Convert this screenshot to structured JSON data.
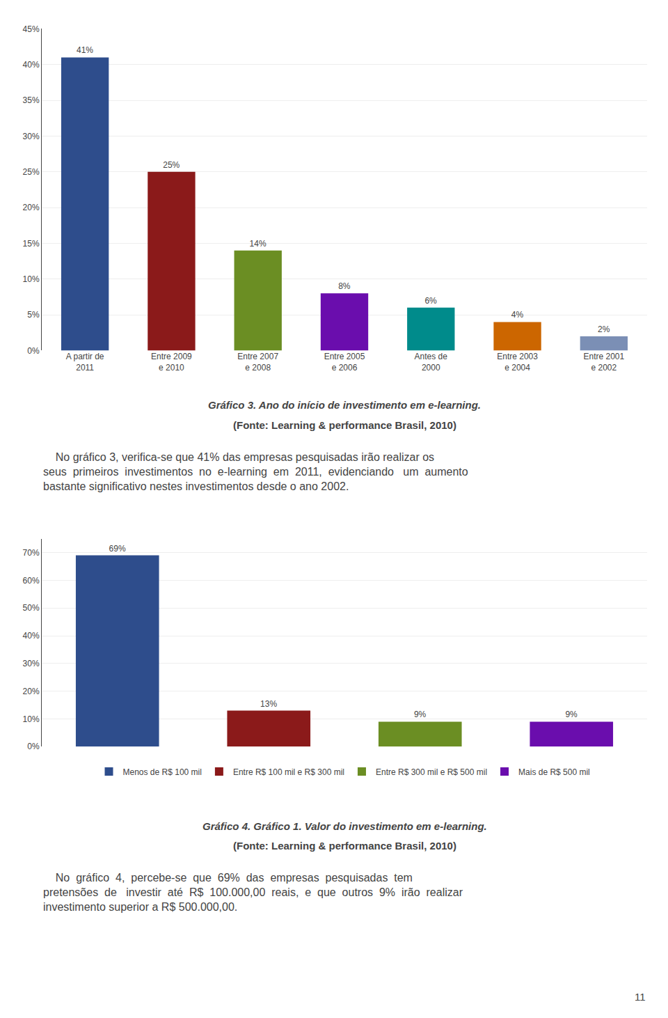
{
  "chart_data": [
    {
      "type": "bar",
      "title": "Gráfico 3. Ano do início de investimento em e-learning.",
      "subtitle": "(Fonte: Learning & performance Brasil, 2010)",
      "categories": [
        "A partir de\n2011",
        "Entre 2009\ne 2010",
        "Entre 2007\ne 2008",
        "Entre 2005\ne 2006",
        "Antes de\n2000",
        "Entre 2003\ne 2004",
        "Entre 2001\ne 2002"
      ],
      "values": [
        41,
        25,
        14,
        8,
        6,
        4,
        2
      ],
      "value_labels": [
        "41%",
        "25%",
        "14%",
        "8%",
        "6%",
        "4%",
        "2%"
      ],
      "colors": [
        "#2E4D8C",
        "#8B1A1A",
        "#6B8E23",
        "#6A0DAD",
        "#008B8B",
        "#CC6600",
        "#7B8FB5"
      ],
      "ylim": [
        0,
        45
      ],
      "yticks": [
        {
          "value": 0,
          "label": "0%"
        },
        {
          "value": 5,
          "label": "5%"
        },
        {
          "value": 10,
          "label": "10%"
        },
        {
          "value": 15,
          "label": "15%"
        },
        {
          "value": 20,
          "label": "20%"
        },
        {
          "value": 25,
          "label": "25%"
        },
        {
          "value": 30,
          "label": "30%"
        },
        {
          "value": 35,
          "label": "35%"
        },
        {
          "value": 40,
          "label": "40%"
        },
        {
          "value": 45,
          "label": "45%"
        }
      ],
      "grid": true,
      "data_labels": true,
      "annotations": [
        "    No gráfico 3, verifica-se que 41% das empresas pesquisadas irão realizar os\nseus  primeiros  investimentos  no  e-learning  em  2011,  evidenciando   um  aumento\nbastante significativo nestes investimentos desde o ano 2002."
      ]
    },
    {
      "type": "bar",
      "title": "Gráfico 4. Gráfico 1. Valor do investimento em e-learning.",
      "subtitle": "(Fonte: Learning & performance Brasil, 2010)",
      "categories": [
        "Menos de R$ 100 mil",
        "Entre R$ 100 mil e R$ 300 mil",
        "Entre R$ 300 mil e R$ 500 mil",
        "Mais de R$ 500 mil"
      ],
      "values": [
        69,
        13,
        9,
        9
      ],
      "value_labels": [
        "69%",
        "13%",
        "9%",
        "9%"
      ],
      "colors": [
        "#2E4D8C",
        "#8B1A1A",
        "#6B8E23",
        "#6A0DAD"
      ],
      "ylim": [
        0,
        75
      ],
      "yticks": [
        {
          "value": 0,
          "label": "0%"
        },
        {
          "value": 10,
          "label": "10%"
        },
        {
          "value": 20,
          "label": "20%"
        },
        {
          "value": 30,
          "label": "30%"
        },
        {
          "value": 40,
          "label": "40%"
        },
        {
          "value": 50,
          "label": "50%"
        },
        {
          "value": 60,
          "label": "60%"
        },
        {
          "value": 70,
          "label": "70%"
        }
      ],
      "grid": true,
      "data_labels": true,
      "legend": "bottom",
      "tick_labels": "y",
      "annotations": [
        "    No  gráfico  4,  percebe-se  que  69%  das  empresas  pesquisadas  tem\npretensões  de   investir  até  R$  100.000,00  reais,  e  que  outros  9%  irão  realizar\ninvestimento superior a R$ 500.000,00.",
        "11"
      ]
    }
  ]
}
